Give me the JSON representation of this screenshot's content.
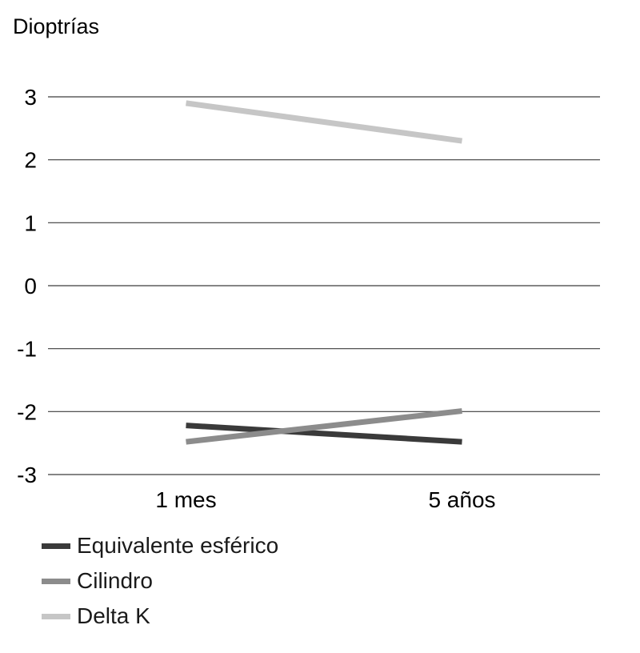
{
  "chart_data": {
    "type": "line",
    "ylabel": "Dioptrías",
    "xlabel": "",
    "categories": [
      "1 mes",
      "5 años"
    ],
    "ylim": [
      -3,
      3
    ],
    "yticks": [
      3,
      2,
      1,
      0,
      -1,
      -2,
      -3
    ],
    "grid": true,
    "legend_position": "bottom-left",
    "series": [
      {
        "name": "Equivalente esférico",
        "color": "#3a3a3a",
        "values": [
          -2.22,
          -2.48
        ]
      },
      {
        "name": "Cilindro",
        "color": "#8c8c8c",
        "values": [
          -2.48,
          -1.99
        ]
      },
      {
        "name": "Delta K",
        "color": "#c6c6c6",
        "values": [
          2.9,
          2.3
        ]
      }
    ]
  }
}
